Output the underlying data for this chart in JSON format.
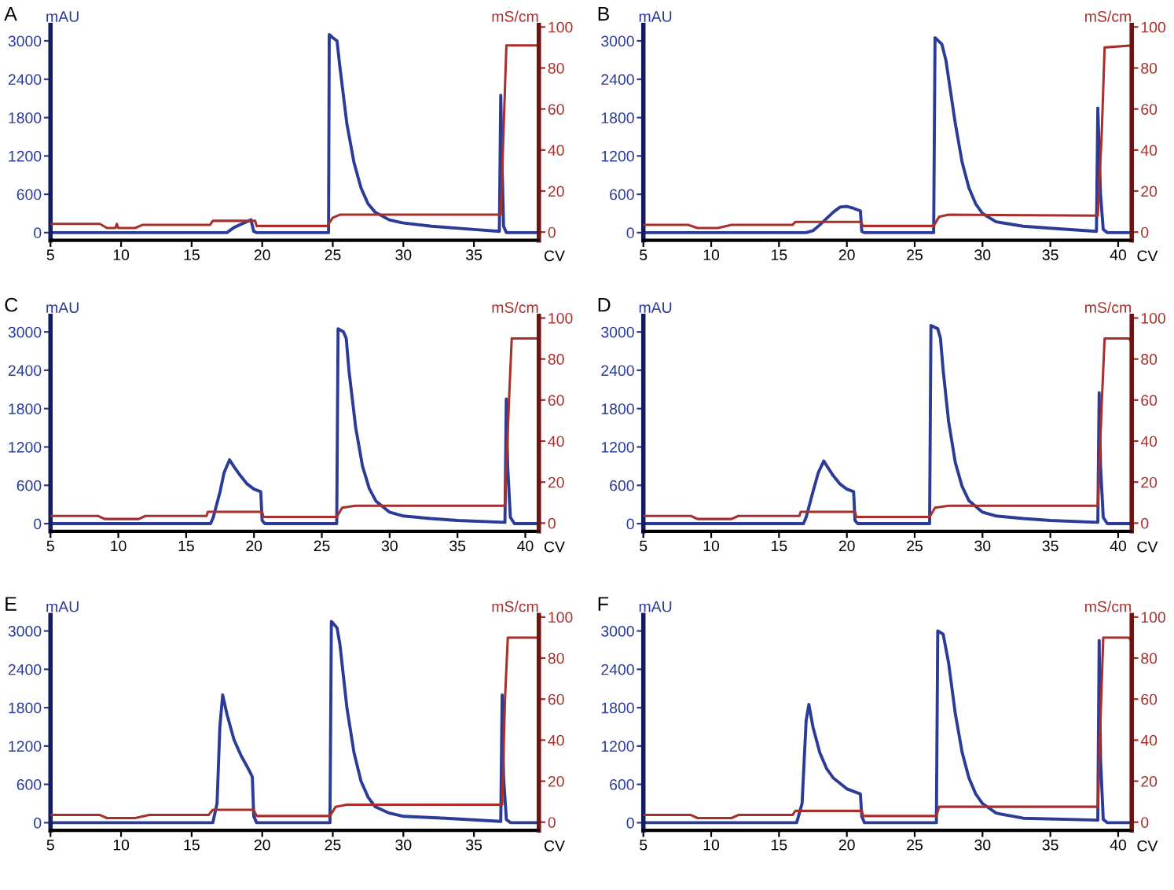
{
  "chart_data": [
    {
      "type": "line",
      "title": "A",
      "xlabel": "CV",
      "ylabel": "mAU",
      "y2label": "mS/cm",
      "xlim": [
        5,
        39.6
      ],
      "xticks": [
        5,
        10,
        15,
        20,
        25,
        30,
        35
      ],
      "ylim": [
        -120,
        3250
      ],
      "yticks": [
        0,
        600,
        1200,
        1800,
        2400,
        3000
      ],
      "y2lim": [
        -4,
        101
      ],
      "y2ticks": [
        0,
        20,
        40,
        60,
        80,
        100
      ],
      "series": [
        {
          "color": "#2a3c98",
          "x": [
            5,
            17.5,
            18,
            18.5,
            19,
            19.2,
            19.4,
            19.6,
            24.7,
            24.75,
            25,
            25.3,
            25.5,
            26,
            26.5,
            27,
            27.5,
            28,
            29,
            30,
            32,
            35,
            36.8,
            36.9,
            37.0,
            37.1,
            37.3,
            39.5
          ],
          "values": [
            0,
            0,
            80,
            130,
            180,
            200,
            20,
            0,
            0,
            3100,
            3050,
            3000,
            2600,
            1700,
            1100,
            700,
            450,
            320,
            200,
            150,
            100,
            50,
            20,
            2150,
            1000,
            100,
            0,
            0
          ]
        },
        {
          "color": "#a8302c",
          "axis": "y2",
          "x": [
            5,
            8.5,
            9,
            9.6,
            9.7,
            9.8,
            11,
            11.5,
            16.3,
            16.5,
            19.5,
            19.6,
            24.6,
            25,
            25.5,
            36.9,
            37.1,
            37.3,
            39.5
          ],
          "values": [
            4,
            4,
            2,
            2,
            4,
            2,
            2,
            3.5,
            3.5,
            5.5,
            5.5,
            3,
            3,
            7,
            8.5,
            8.5,
            50,
            91,
            91
          ]
        }
      ]
    },
    {
      "type": "line",
      "title": "B",
      "xlabel": "CV",
      "ylabel": "mAU",
      "y2label": "mS/cm",
      "xlim": [
        5,
        41
      ],
      "xticks": [
        5,
        10,
        15,
        20,
        25,
        30,
        35,
        40
      ],
      "ylim": [
        -120,
        3250
      ],
      "yticks": [
        0,
        600,
        1200,
        1800,
        2400,
        3000
      ],
      "y2lim": [
        -4,
        101
      ],
      "y2ticks": [
        0,
        20,
        40,
        60,
        80,
        100
      ],
      "series": [
        {
          "color": "#2a3c98",
          "x": [
            5,
            17,
            17.5,
            18,
            19,
            19.5,
            20,
            20.5,
            21,
            21.1,
            21.3,
            26.4,
            26.5,
            27,
            27.3,
            28,
            28.5,
            29,
            29.5,
            30,
            31,
            33,
            35,
            38.4,
            38.5,
            38.7,
            38.9,
            39.2,
            41
          ],
          "values": [
            0,
            0,
            30,
            120,
            320,
            400,
            410,
            380,
            340,
            20,
            0,
            0,
            3050,
            2950,
            2700,
            1700,
            1100,
            700,
            450,
            300,
            170,
            100,
            70,
            20,
            1950,
            600,
            50,
            0,
            0
          ]
        },
        {
          "color": "#a8302c",
          "axis": "y2",
          "x": [
            5,
            8.3,
            9,
            10.5,
            11.5,
            16,
            16.2,
            21,
            21.2,
            26.4,
            26.8,
            27.5,
            38.5,
            38.8,
            39,
            41
          ],
          "values": [
            3.5,
            3.5,
            2,
            2,
            3.5,
            3.5,
            5,
            5,
            3,
            3,
            7.5,
            8.5,
            8,
            50,
            90,
            91
          ]
        }
      ]
    },
    {
      "type": "line",
      "title": "C",
      "xlabel": "CV",
      "ylabel": "mAU",
      "y2label": "mS/cm",
      "xlim": [
        5,
        41
      ],
      "xticks": [
        5,
        10,
        15,
        20,
        25,
        30,
        35,
        40
      ],
      "ylim": [
        -120,
        3250
      ],
      "yticks": [
        0,
        600,
        1200,
        1800,
        2400,
        3000
      ],
      "y2lim": [
        -4,
        101
      ],
      "y2ticks": [
        0,
        20,
        40,
        60,
        80,
        100
      ],
      "series": [
        {
          "color": "#2a3c98",
          "x": [
            5,
            16.8,
            17,
            17.5,
            17.8,
            18.2,
            18.5,
            19,
            19.5,
            20,
            20.5,
            20.6,
            20.8,
            26.1,
            26.2,
            26.6,
            26.8,
            27,
            27.5,
            28,
            28.5,
            29,
            30,
            31,
            33,
            35,
            38.5,
            38.6,
            38.7,
            38.9,
            39.2,
            41
          ],
          "values": [
            0,
            0,
            100,
            500,
            800,
            1000,
            900,
            750,
            620,
            540,
            500,
            50,
            0,
            0,
            3050,
            3000,
            2900,
            2400,
            1500,
            900,
            550,
            350,
            180,
            120,
            80,
            50,
            20,
            1950,
            900,
            100,
            0,
            0
          ]
        },
        {
          "color": "#a8302c",
          "axis": "y2",
          "x": [
            5,
            8.5,
            9,
            11.5,
            12,
            16.5,
            16.6,
            20.6,
            20.7,
            26.1,
            26.5,
            27.5,
            38.5,
            38.8,
            39,
            41
          ],
          "values": [
            3.5,
            3.5,
            2,
            2,
            3.5,
            3.5,
            5.5,
            5.5,
            3,
            3,
            7.5,
            8.5,
            8.5,
            60,
            90,
            90
          ]
        }
      ]
    },
    {
      "type": "line",
      "title": "D",
      "xlabel": "CV",
      "ylabel": "mAU",
      "y2label": "mS/cm",
      "xlim": [
        5,
        41
      ],
      "xticks": [
        5,
        10,
        15,
        20,
        25,
        30,
        35,
        40
      ],
      "ylim": [
        -120,
        3250
      ],
      "yticks": [
        0,
        600,
        1200,
        1800,
        2400,
        3000
      ],
      "y2lim": [
        -4,
        101
      ],
      "y2ticks": [
        0,
        20,
        40,
        60,
        80,
        100
      ],
      "series": [
        {
          "color": "#2a3c98",
          "x": [
            5,
            16.8,
            17,
            17.5,
            17.9,
            18.3,
            18.6,
            19,
            19.5,
            20,
            20.5,
            20.6,
            20.8,
            26.1,
            26.2,
            26.7,
            26.9,
            27.1,
            27.5,
            28,
            28.5,
            29,
            30,
            31,
            33,
            35,
            38.5,
            38.6,
            38.7,
            38.9,
            39.2,
            41
          ],
          "values": [
            0,
            0,
            100,
            500,
            800,
            980,
            880,
            750,
            620,
            540,
            500,
            50,
            0,
            0,
            3100,
            3050,
            2900,
            2400,
            1600,
            950,
            580,
            360,
            180,
            120,
            80,
            50,
            20,
            2050,
            900,
            100,
            0,
            0
          ]
        },
        {
          "color": "#a8302c",
          "axis": "y2",
          "x": [
            5,
            8.5,
            9,
            11.5,
            12,
            16.5,
            16.6,
            20.6,
            20.7,
            26.1,
            26.5,
            27.5,
            38.5,
            38.8,
            39,
            40.8,
            41
          ],
          "values": [
            3.5,
            3.5,
            2,
            2,
            3.5,
            3.5,
            5.5,
            5.5,
            3,
            3,
            7.5,
            8.5,
            8.5,
            60,
            90,
            90,
            88
          ]
        }
      ]
    },
    {
      "type": "line",
      "title": "E",
      "xlabel": "CV",
      "ylabel": "mAU",
      "y2label": "mS/cm",
      "xlim": [
        5,
        39.6
      ],
      "xticks": [
        5,
        10,
        15,
        20,
        25,
        30,
        35
      ],
      "ylim": [
        -120,
        3250
      ],
      "yticks": [
        0,
        600,
        1200,
        1800,
        2400,
        3000
      ],
      "y2lim": [
        -4,
        101
      ],
      "y2ticks": [
        0,
        20,
        40,
        60,
        80,
        100
      ],
      "series": [
        {
          "color": "#2a3c98",
          "x": [
            5,
            16.5,
            16.8,
            17,
            17.2,
            17.5,
            18,
            18.5,
            19,
            19.3,
            19.4,
            19.6,
            24.8,
            24.9,
            25.3,
            25.5,
            26,
            26.5,
            27,
            27.5,
            28,
            29,
            30,
            33,
            36.9,
            37.0,
            37.1,
            37.3,
            37.6,
            39.5
          ],
          "values": [
            0,
            0,
            300,
            1500,
            2000,
            1700,
            1300,
            1050,
            850,
            720,
            100,
            0,
            0,
            3150,
            3050,
            2800,
            1800,
            1100,
            650,
            400,
            250,
            150,
            100,
            70,
            20,
            2000,
            700,
            50,
            0,
            0
          ]
        },
        {
          "color": "#a8302c",
          "axis": "y2",
          "x": [
            5,
            8.5,
            9,
            11,
            12,
            16.2,
            16.5,
            19.4,
            19.6,
            24.8,
            25.2,
            26,
            37,
            37.2,
            37.4,
            39.5
          ],
          "values": [
            3.5,
            3.5,
            2,
            2,
            3.5,
            3.5,
            6,
            6,
            3,
            3,
            7.5,
            8.5,
            8.5,
            60,
            90,
            90
          ]
        }
      ]
    },
    {
      "type": "line",
      "title": "F",
      "xlabel": "CV",
      "ylabel": "mAU",
      "y2label": "mS/cm",
      "xlim": [
        5,
        41
      ],
      "xticks": [
        5,
        10,
        15,
        20,
        25,
        30,
        35,
        40
      ],
      "ylim": [
        -120,
        3250
      ],
      "yticks": [
        0,
        600,
        1200,
        1800,
        2400,
        3000
      ],
      "y2lim": [
        -4,
        101
      ],
      "y2ticks": [
        0,
        20,
        40,
        60,
        80,
        100
      ],
      "series": [
        {
          "color": "#2a3c98",
          "x": [
            5,
            16.3,
            16.7,
            17,
            17.2,
            17.5,
            18,
            18.5,
            19,
            20,
            21,
            21.1,
            21.3,
            26.6,
            26.7,
            27.1,
            27.5,
            28,
            28.5,
            29,
            29.5,
            30,
            31,
            33,
            38.5,
            38.6,
            38.7,
            38.9,
            39.2,
            41
          ],
          "values": [
            0,
            0,
            300,
            1600,
            1850,
            1500,
            1100,
            850,
            700,
            530,
            450,
            100,
            0,
            0,
            3000,
            2950,
            2500,
            1700,
            1100,
            700,
            450,
            300,
            150,
            70,
            40,
            2850,
            1000,
            50,
            0,
            0
          ]
        },
        {
          "color": "#a8302c",
          "axis": "y2",
          "x": [
            5,
            8.5,
            9,
            11.5,
            12,
            16,
            16.2,
            21.1,
            21.2,
            26.6,
            26.8,
            38.5,
            38.7,
            38.9,
            40.8,
            41
          ],
          "values": [
            3.5,
            3.5,
            2,
            2,
            3.5,
            3.5,
            5.5,
            5.5,
            3,
            3,
            7.5,
            7.5,
            50,
            90,
            90,
            88
          ]
        }
      ]
    }
  ]
}
